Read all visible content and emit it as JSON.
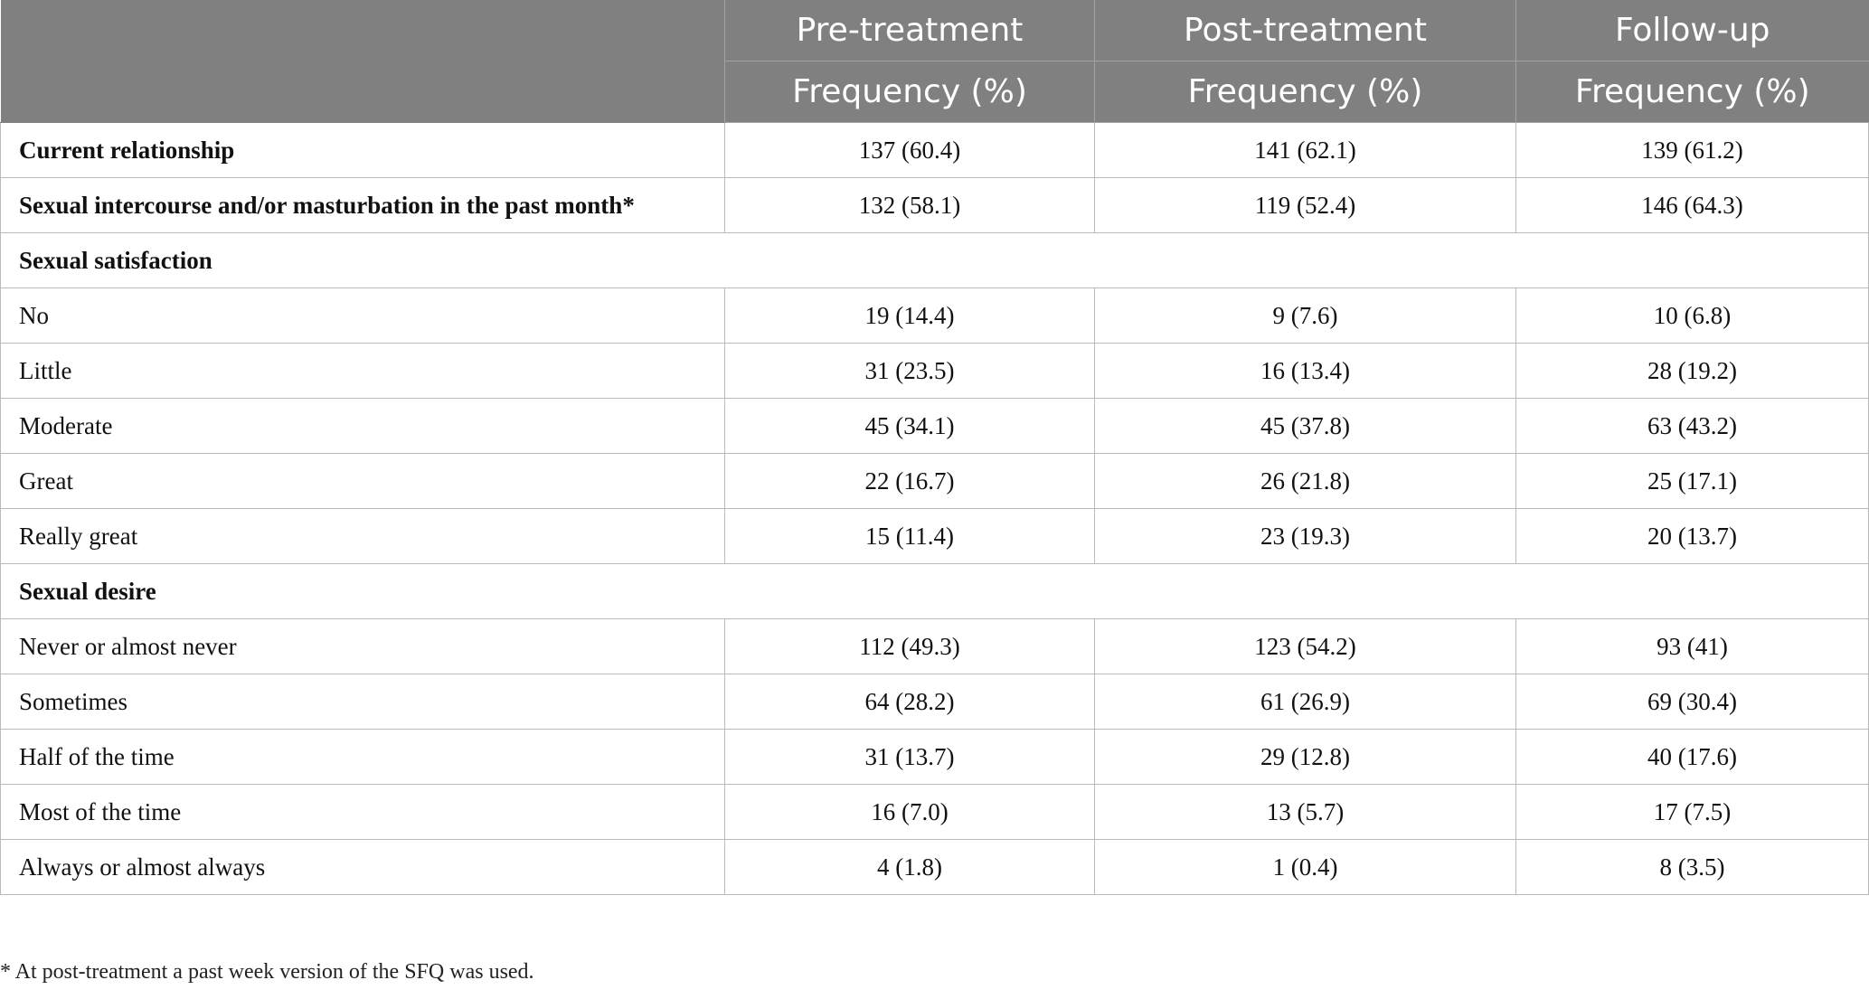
{
  "header": {
    "columns": [
      {
        "label": "Pre-treatment",
        "sublabel": "Frequency (%)"
      },
      {
        "label": "Post-treatment",
        "sublabel": "Frequency (%)"
      },
      {
        "label": "Follow-up",
        "sublabel": "Frequency (%)"
      }
    ]
  },
  "rows": [
    {
      "label": "Current relationship",
      "values": [
        "137 (60.4)",
        "141 (62.1)",
        "139 (61.2)"
      ]
    },
    {
      "label": "Sexual intercourse and/or masturbation in the past month",
      "marker": "*",
      "values": [
        "132 (58.1)",
        "119 (52.4)",
        "146 (64.3)"
      ]
    },
    {
      "label": "Sexual satisfaction"
    },
    {
      "label": "No",
      "values": [
        "19 (14.4)",
        "9 (7.6)",
        "10 (6.8)"
      ]
    },
    {
      "label": "Little",
      "values": [
        "31 (23.5)",
        "16 (13.4)",
        "28 (19.2)"
      ]
    },
    {
      "label": "Moderate",
      "values": [
        "45 (34.1)",
        "45 (37.8)",
        "63 (43.2)"
      ]
    },
    {
      "label": "Great",
      "values": [
        "22 (16.7)",
        "26 (21.8)",
        "25 (17.1)"
      ]
    },
    {
      "label": "Really great",
      "values": [
        "15 (11.4)",
        "23 (19.3)",
        "20 (13.7)"
      ]
    },
    {
      "label": "Sexual desire"
    },
    {
      "label": "Never or almost never",
      "values": [
        "112 (49.3)",
        "123 (54.2)",
        "93 (41)"
      ]
    },
    {
      "label": "Sometimes",
      "values": [
        "64 (28.2)",
        "61 (26.9)",
        "69 (30.4)"
      ]
    },
    {
      "label": "Half of the time",
      "values": [
        "31 (13.7)",
        "29 (12.8)",
        "40 (17.6)"
      ]
    },
    {
      "label": "Most of the time",
      "values": [
        "16 (7.0)",
        "13 (5.7)",
        "17 (7.5)"
      ]
    },
    {
      "label": "Always or almost always",
      "values": [
        "4 (1.8)",
        "1 (0.4)",
        "8 (3.5)"
      ]
    }
  ],
  "footnote": "* At post-treatment a past week version of the SFQ was used."
}
